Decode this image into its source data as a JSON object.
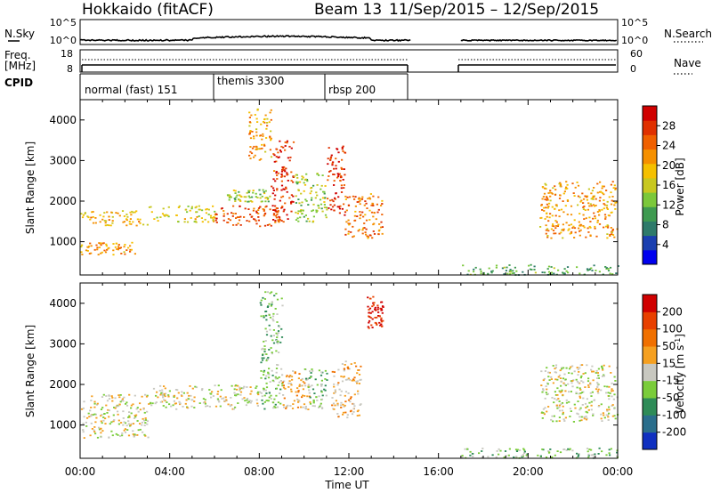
{
  "header": {
    "radar": "Hokkaido (fitACF)",
    "beam": "Beam 13",
    "date_range": "11/Sep/2015 – 12/Sep/2015"
  },
  "noise_panel": {
    "left_label": "N.Sky",
    "right_label": "N.Search",
    "tick_top": "10^5",
    "tick_bottom": "10^0"
  },
  "freq_panel": {
    "left_label_1": "Freq.",
    "left_label_2": "[MHz]",
    "right_label": "Nave",
    "left_tick_top": "18",
    "left_tick_bottom": "8",
    "right_tick_top": "60",
    "right_tick_bottom": "0"
  },
  "cpid": {
    "label": "CPID",
    "segments": [
      {
        "label": "normal (fast) 151",
        "start_h": 0,
        "end_h": 6
      },
      {
        "label": "themis 3300",
        "start_h": 6,
        "end_h": 11
      },
      {
        "label": "rbsp 200",
        "start_h": 11,
        "end_h": 14.8
      }
    ]
  },
  "x_axis": {
    "label": "Time UT",
    "tick_labels": [
      "00:00",
      "04:00",
      "08:00",
      "12:00",
      "16:00",
      "20:00",
      "00:00"
    ]
  },
  "panels": {
    "power": {
      "ylabel": "Slant Range [km]",
      "yticks": [
        "1000",
        "2000",
        "3000",
        "4000"
      ],
      "colorbar_label": "Power [dB]",
      "colorbar_ticks": [
        "4",
        "8",
        "12",
        "16",
        "20",
        "24",
        "28"
      ]
    },
    "velocity": {
      "ylabel": "Slant Range [km]",
      "yticks": [
        "1000",
        "2000",
        "3000",
        "4000"
      ],
      "colorbar_label_main": "Velocity [m s",
      "colorbar_label_sup": "-1",
      "colorbar_label_end": "]",
      "colorbar_ticks": [
        "200",
        "100",
        "50",
        "15",
        "-15",
        "-50",
        "-100",
        "-200"
      ]
    }
  },
  "colors": {
    "power_scale": [
      "#0000ee",
      "#1a3fb0",
      "#2e7a6a",
      "#3e9a50",
      "#7bc83a",
      "#c8c820",
      "#f5c000",
      "#f59000",
      "#f06000",
      "#e03000",
      "#d00000"
    ],
    "velocity_scale": [
      "#1030c0",
      "#2a6e8c",
      "#2e8b57",
      "#7acc3a",
      "#c8c8c0",
      "#f5a020",
      "#f07000",
      "#e84000",
      "#d00000"
    ]
  },
  "chart_data": [
    {
      "type": "heatmap",
      "title": "Power",
      "xlabel": "Time UT",
      "ylabel": "Slant Range [km]",
      "xlim_h": [
        0,
        24
      ],
      "ylim_km": [
        180,
        4500
      ],
      "zlabel": "Power [dB]",
      "zlim": [
        0,
        30
      ],
      "data_gap_h": [
        14.8,
        17.0
      ],
      "regions": [
        {
          "t": [
            0.0,
            2.5
          ],
          "range_km": [
            700,
            1000
          ],
          "power_db": 20
        },
        {
          "t": [
            0.0,
            3.0
          ],
          "range_km": [
            1400,
            1800
          ],
          "power_db": 18
        },
        {
          "t": [
            3.0,
            6.0
          ],
          "range_km": [
            1500,
            1900
          ],
          "power_db": 16
        },
        {
          "t": [
            6.0,
            9.0
          ],
          "range_km": [
            1400,
            1900
          ],
          "power_db": 24
        },
        {
          "t": [
            6.5,
            8.5
          ],
          "range_km": [
            2000,
            2300
          ],
          "power_db": 14
        },
        {
          "t": [
            7.5,
            8.5
          ],
          "range_km": [
            3000,
            4300
          ],
          "power_db": 20
        },
        {
          "t": [
            8.5,
            9.5
          ],
          "range_km": [
            1500,
            3500
          ],
          "power_db": 26
        },
        {
          "t": [
            9.5,
            11.0
          ],
          "range_km": [
            1500,
            2700
          ],
          "power_db": 14
        },
        {
          "t": [
            11.0,
            11.8
          ],
          "range_km": [
            1600,
            3400
          ],
          "power_db": 26
        },
        {
          "t": [
            11.8,
            13.5
          ],
          "range_km": [
            1100,
            2200
          ],
          "power_db": 22
        },
        {
          "t": [
            17.0,
            24.0
          ],
          "range_km": [
            200,
            450
          ],
          "power_db": 10
        },
        {
          "t": [
            20.5,
            24.0
          ],
          "range_km": [
            1100,
            2500
          ],
          "power_db": 20
        }
      ]
    },
    {
      "type": "heatmap",
      "title": "Velocity",
      "xlabel": "Time UT",
      "ylabel": "Slant Range [km]",
      "xlim_h": [
        0,
        24
      ],
      "ylim_km": [
        180,
        4500
      ],
      "zlabel": "Velocity [m s-1]",
      "zlim": [
        -250,
        250
      ],
      "data_gap_h": [
        14.8,
        17.0
      ],
      "regions": [
        {
          "t": [
            0.0,
            3.0
          ],
          "range_km": [
            700,
            1800
          ],
          "velocity": 0
        },
        {
          "t": [
            3.0,
            8.0
          ],
          "range_km": [
            1400,
            2000
          ],
          "velocity": 0
        },
        {
          "t": [
            8.0,
            9.0
          ],
          "range_km": [
            1400,
            4300
          ],
          "velocity": -60
        },
        {
          "t": [
            9.0,
            10.3
          ],
          "range_km": [
            1400,
            2400
          ],
          "velocity": 40
        },
        {
          "t": [
            10.0,
            11.0
          ],
          "range_km": [
            1400,
            2400
          ],
          "velocity": -60
        },
        {
          "t": [
            11.2,
            12.5
          ],
          "range_km": [
            1200,
            2600
          ],
          "velocity": 40
        },
        {
          "t": [
            12.8,
            13.5
          ],
          "range_km": [
            3400,
            4200
          ],
          "velocity": 200
        },
        {
          "t": [
            17.0,
            24.0
          ],
          "range_km": [
            200,
            450
          ],
          "velocity": -50
        },
        {
          "t": [
            20.5,
            24.0
          ],
          "range_km": [
            1100,
            2500
          ],
          "velocity": 0
        }
      ]
    }
  ]
}
